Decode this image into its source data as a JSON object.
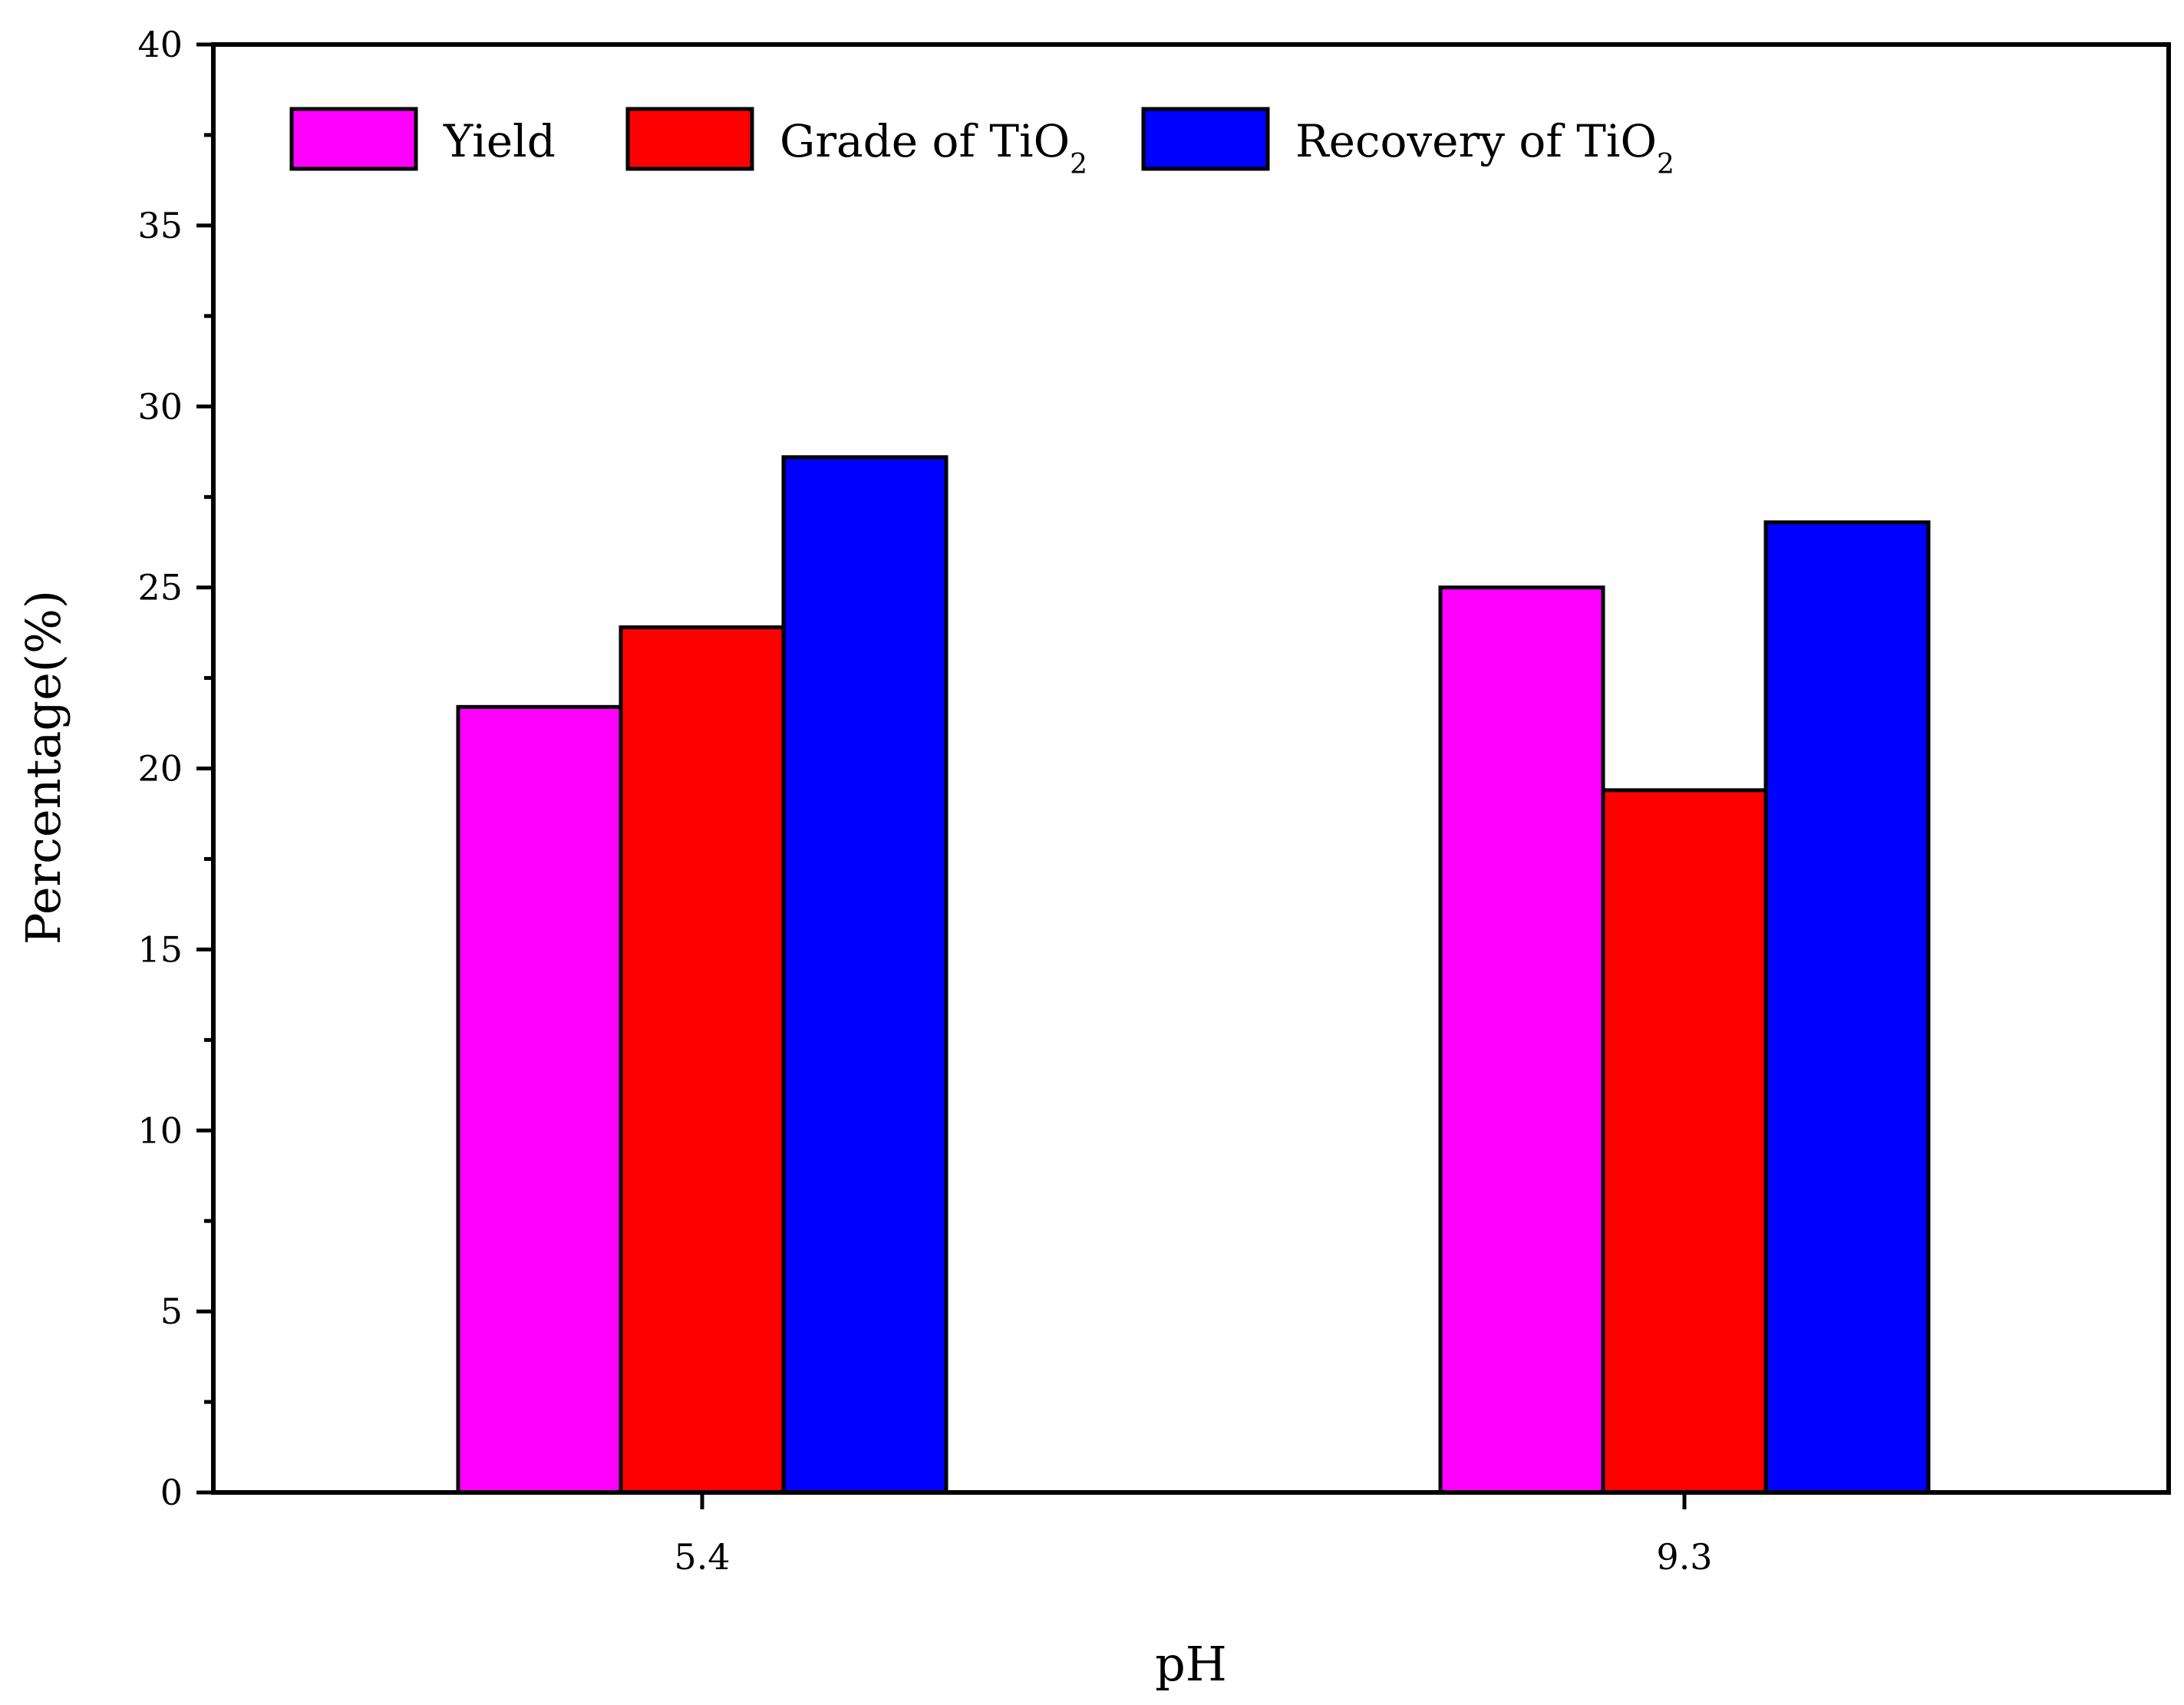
{
  "chart_data": {
    "type": "bar",
    "xlabel": "pH",
    "ylabel": "Percentage(%)",
    "categories": [
      "5.4",
      "9.3"
    ],
    "ylim": [
      0,
      40
    ],
    "yticks": [
      "0",
      "5",
      "10",
      "15",
      "20",
      "25",
      "30",
      "35",
      "40"
    ],
    "series": [
      {
        "name": "Yield",
        "color": "#ff00ff",
        "values": [
          21.7,
          25.0
        ]
      },
      {
        "name": "Grade of TiO",
        "subscript": "2",
        "color": "#ff0000",
        "values": [
          23.9,
          19.4
        ]
      },
      {
        "name": "Recovery of TiO",
        "subscript": "2",
        "color": "#0000ff",
        "values": [
          28.6,
          26.8
        ]
      }
    ],
    "legend_position": "top-left",
    "grid": false
  }
}
